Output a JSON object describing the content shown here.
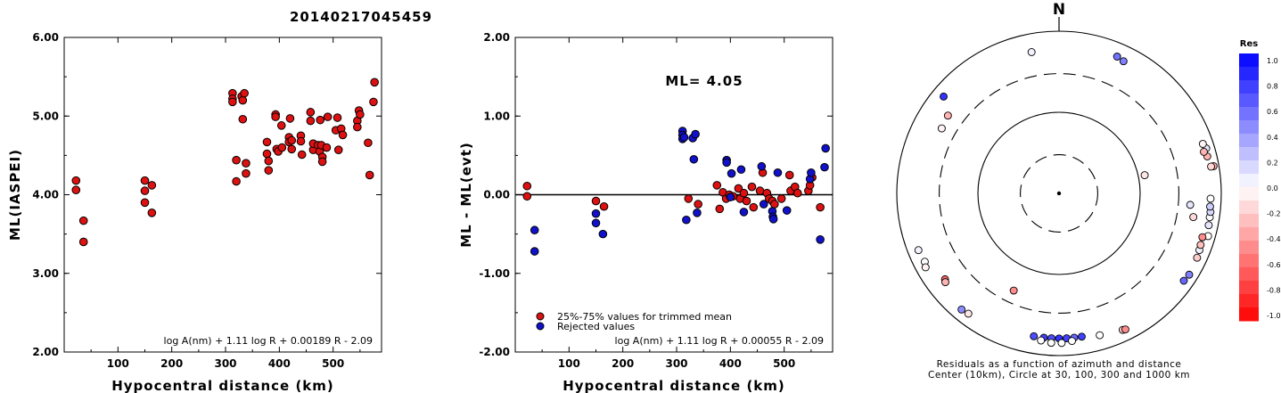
{
  "title": "20140217045459",
  "chart_data": [
    {
      "type": "scatter",
      "xlabel": "Hypocentral distance (km)",
      "ylabel": "ML(IASPEI)",
      "xlim": [
        0,
        590
      ],
      "ylim": [
        2.0,
        6.0
      ],
      "xticks": [
        "100",
        "200",
        "300",
        "400",
        "500"
      ],
      "yticks": [
        "2.00",
        "3.00",
        "4.00",
        "5.00",
        "6.00"
      ],
      "formula": "log A(nm) + 1.11 log R + 0.00189 R - 2.09",
      "points": [
        [
          22,
          4.18
        ],
        [
          22,
          4.06
        ],
        [
          36,
          3.67
        ],
        [
          36,
          3.4
        ],
        [
          150,
          4.18
        ],
        [
          150,
          4.05
        ],
        [
          150,
          3.9
        ],
        [
          163,
          4.12
        ],
        [
          163,
          3.77
        ],
        [
          313,
          5.29
        ],
        [
          313,
          5.22
        ],
        [
          313,
          5.18
        ],
        [
          320,
          4.44
        ],
        [
          320,
          4.17
        ],
        [
          330,
          5.25
        ],
        [
          332,
          5.2
        ],
        [
          332,
          4.96
        ],
        [
          335,
          5.29
        ],
        [
          338,
          4.4
        ],
        [
          338,
          4.27
        ],
        [
          377,
          4.67
        ],
        [
          377,
          4.52
        ],
        [
          380,
          4.43
        ],
        [
          380,
          4.31
        ],
        [
          393,
          5.02
        ],
        [
          393,
          4.99
        ],
        [
          395,
          4.58
        ],
        [
          398,
          4.55
        ],
        [
          404,
          4.88
        ],
        [
          405,
          4.6
        ],
        [
          418,
          4.73
        ],
        [
          418,
          4.67
        ],
        [
          420,
          4.97
        ],
        [
          423,
          4.69
        ],
        [
          423,
          4.58
        ],
        [
          440,
          4.75
        ],
        [
          440,
          4.68
        ],
        [
          442,
          4.51
        ],
        [
          458,
          5.05
        ],
        [
          458,
          4.94
        ],
        [
          463,
          4.57
        ],
        [
          463,
          4.65
        ],
        [
          472,
          4.63
        ],
        [
          475,
          4.55
        ],
        [
          476,
          4.95
        ],
        [
          478,
          4.63
        ],
        [
          480,
          4.48
        ],
        [
          480,
          4.42
        ],
        [
          488,
          4.6
        ],
        [
          490,
          4.99
        ],
        [
          505,
          4.82
        ],
        [
          508,
          4.98
        ],
        [
          510,
          4.57
        ],
        [
          515,
          4.84
        ],
        [
          518,
          4.76
        ],
        [
          545,
          4.94
        ],
        [
          545,
          4.86
        ],
        [
          548,
          5.07
        ],
        [
          550,
          5.02
        ],
        [
          565,
          4.66
        ],
        [
          568,
          4.25
        ],
        [
          575,
          5.18
        ],
        [
          577,
          5.43
        ]
      ]
    },
    {
      "type": "scatter",
      "xlabel": "Hypocentral distance (km)",
      "ylabel": "ML - ML(evt)",
      "xlim": [
        0,
        590
      ],
      "ylim": [
        -2.0,
        2.0
      ],
      "xticks": [
        "100",
        "200",
        "300",
        "400",
        "500"
      ],
      "yticks": [
        "-2.00",
        "-1.00",
        "0.00",
        "1.00",
        "2.00"
      ],
      "annotation": "ML= 4.05",
      "formula": "log A(nm) + 1.11 log R + 0.00055 R - 2.09",
      "series": [
        {
          "name": "25%-75% values for trimmed mean",
          "color": "#dd1111",
          "points": [
            [
              22,
              0.11
            ],
            [
              22,
              -0.02
            ],
            [
              150,
              -0.08
            ],
            [
              165,
              -0.15
            ],
            [
              322,
              -0.05
            ],
            [
              340,
              -0.12
            ],
            [
              375,
              0.12
            ],
            [
              380,
              -0.18
            ],
            [
              386,
              0.03
            ],
            [
              392,
              -0.05
            ],
            [
              398,
              0.0
            ],
            [
              405,
              -0.02
            ],
            [
              415,
              0.08
            ],
            [
              418,
              -0.05
            ],
            [
              425,
              0.02
            ],
            [
              430,
              -0.08
            ],
            [
              440,
              0.1
            ],
            [
              443,
              -0.16
            ],
            [
              455,
              0.05
            ],
            [
              460,
              0.28
            ],
            [
              468,
              0.02
            ],
            [
              472,
              -0.05
            ],
            [
              478,
              -0.08
            ],
            [
              482,
              -0.12
            ],
            [
              495,
              -0.05
            ],
            [
              510,
              0.25
            ],
            [
              512,
              0.05
            ],
            [
              520,
              0.1
            ],
            [
              525,
              0.02
            ],
            [
              545,
              0.05
            ],
            [
              548,
              0.12
            ],
            [
              552,
              0.22
            ],
            [
              567,
              -0.16
            ]
          ]
        },
        {
          "name": "Rejected values",
          "color": "#1111cc",
          "points": [
            [
              36,
              -0.45
            ],
            [
              36,
              -0.72
            ],
            [
              150,
              -0.24
            ],
            [
              150,
              -0.36
            ],
            [
              163,
              -0.5
            ],
            [
              311,
              0.81
            ],
            [
              311,
              0.76
            ],
            [
              311,
              0.71
            ],
            [
              314,
              0.73
            ],
            [
              318,
              -0.32
            ],
            [
              330,
              0.72
            ],
            [
              332,
              0.45
            ],
            [
              335,
              0.77
            ],
            [
              338,
              -0.23
            ],
            [
              393,
              0.44
            ],
            [
              393,
              0.41
            ],
            [
              400,
              -0.03
            ],
            [
              402,
              0.27
            ],
            [
              420,
              0.32
            ],
            [
              425,
              -0.22
            ],
            [
              458,
              0.36
            ],
            [
              462,
              -0.12
            ],
            [
              478,
              -0.21
            ],
            [
              479,
              -0.28
            ],
            [
              480,
              -0.31
            ],
            [
              488,
              0.28
            ],
            [
              505,
              -0.2
            ],
            [
              548,
              0.2
            ],
            [
              550,
              0.28
            ],
            [
              567,
              -0.57
            ],
            [
              575,
              0.35
            ],
            [
              577,
              0.59
            ]
          ]
        }
      ]
    },
    {
      "type": "polar-scatter",
      "north_label": "N",
      "caption_line1": "Residuals as a function of azimuth and distance",
      "caption_line2": "Center (10km), Circle at 30, 100, 300 and 1000 km",
      "rings_km": [
        30,
        100,
        300,
        1000
      ],
      "colorbar": {
        "title": "Res",
        "labels": [
          "1.0",
          "0.8",
          "0.6",
          "0.4",
          "0.2",
          "0.0",
          "-0.2",
          "-0.4",
          "-0.6",
          "-0.8",
          "-1.0"
        ],
        "max_color": "#0000ff",
        "min_color": "#ff0000"
      },
      "points_azimuth_distance_residual": [
        [
          78,
          120,
          -0.1
        ],
        [
          205,
          210,
          -0.45
        ],
        [
          100,
          480,
          -0.15
        ],
        [
          95,
          420,
          0.1
        ],
        [
          349,
          595,
          0.05
        ],
        [
          23,
          680,
          0.55
        ],
        [
          26,
          650,
          0.5
        ],
        [
          310,
          720,
          0.8
        ],
        [
          305,
          470,
          -0.3
        ],
        [
          299,
          450,
          -0.05
        ],
        [
          73,
          790,
          0.1
        ],
        [
          71,
          750,
          -0.05
        ],
        [
          76,
          765,
          -0.3
        ],
        [
          74,
          720,
          -0.3
        ],
        [
          80,
          860,
          -0.35
        ],
        [
          80,
          800,
          -0.15
        ],
        [
          106,
          815,
          0.0
        ],
        [
          102,
          770,
          0.1
        ],
        [
          99,
          760,
          0.0
        ],
        [
          97,
          760,
          0.15
        ],
        [
          95,
          740,
          0.2
        ],
        [
          92,
          740,
          0.0
        ],
        [
          115,
          755,
          -0.2
        ],
        [
          112,
          735,
          0.05
        ],
        [
          110,
          720,
          -0.25
        ],
        [
          107,
          705,
          -0.45
        ],
        [
          122,
          780,
          0.5
        ],
        [
          125,
          755,
          0.6
        ],
        [
          243,
          720,
          0.0
        ],
        [
          241,
          760,
          -0.05
        ],
        [
          248,
          740,
          0.05
        ],
        [
          233,
          575,
          -0.6
        ],
        [
          232,
          600,
          -0.3
        ],
        [
          220,
          740,
          0.45
        ],
        [
          217,
          720,
          -0.1
        ],
        [
          190,
          615,
          0.7
        ],
        [
          186,
          615,
          0.75
        ],
        [
          183,
          615,
          0.7
        ],
        [
          180,
          615,
          0.8
        ],
        [
          177,
          615,
          0.75
        ],
        [
          174,
          615,
          0.6
        ],
        [
          171,
          615,
          0.75
        ],
        [
          187,
          672,
          0.0
        ],
        [
          183,
          700,
          0.0
        ],
        [
          179,
          700,
          0.0
        ],
        [
          175,
          672,
          0.0
        ],
        [
          164,
          660,
          0.0
        ],
        [
          155,
          720,
          -0.2
        ],
        [
          154,
          735,
          -0.45
        ]
      ]
    }
  ]
}
